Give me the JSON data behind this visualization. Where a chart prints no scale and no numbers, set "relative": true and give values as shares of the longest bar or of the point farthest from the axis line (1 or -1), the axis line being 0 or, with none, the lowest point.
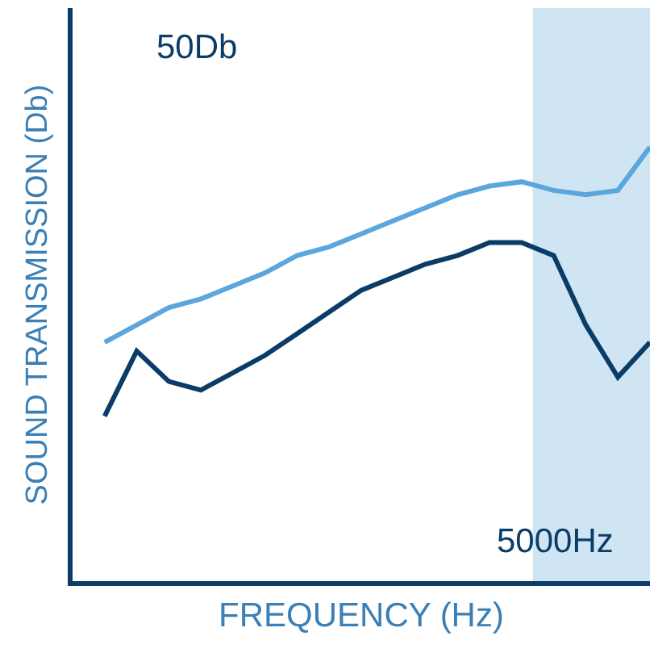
{
  "chart_data": {
    "type": "line",
    "relative": true,
    "xlabel": "FREQUENCY (Hz)",
    "ylabel": "SOUND TRANSMISSION (Db)",
    "annotations": [
      "50Db",
      "5000Hz"
    ],
    "categories": [
      null,
      null,
      null,
      null,
      null,
      null,
      null,
      null,
      null,
      null,
      null,
      null,
      null,
      null,
      null,
      null,
      null,
      null
    ],
    "series": [
      {
        "color": "#5ba6dc",
        "values": [
          0.55,
          0.59,
          0.63,
          0.65,
          0.68,
          0.71,
          0.75,
          0.77,
          0.8,
          0.83,
          0.86,
          0.89,
          0.91,
          0.92,
          0.9,
          0.89,
          0.9,
          1.0
        ]
      },
      {
        "color": "#0b3c68",
        "values": [
          0.38,
          0.53,
          0.46,
          0.44,
          0.48,
          0.52,
          0.57,
          0.62,
          0.67,
          0.7,
          0.73,
          0.75,
          0.78,
          0.78,
          0.75,
          0.59,
          0.47,
          0.55
        ]
      }
    ],
    "marker": "none",
    "line_style": "solid",
    "grid": false,
    "tick_labels": false
  }
}
